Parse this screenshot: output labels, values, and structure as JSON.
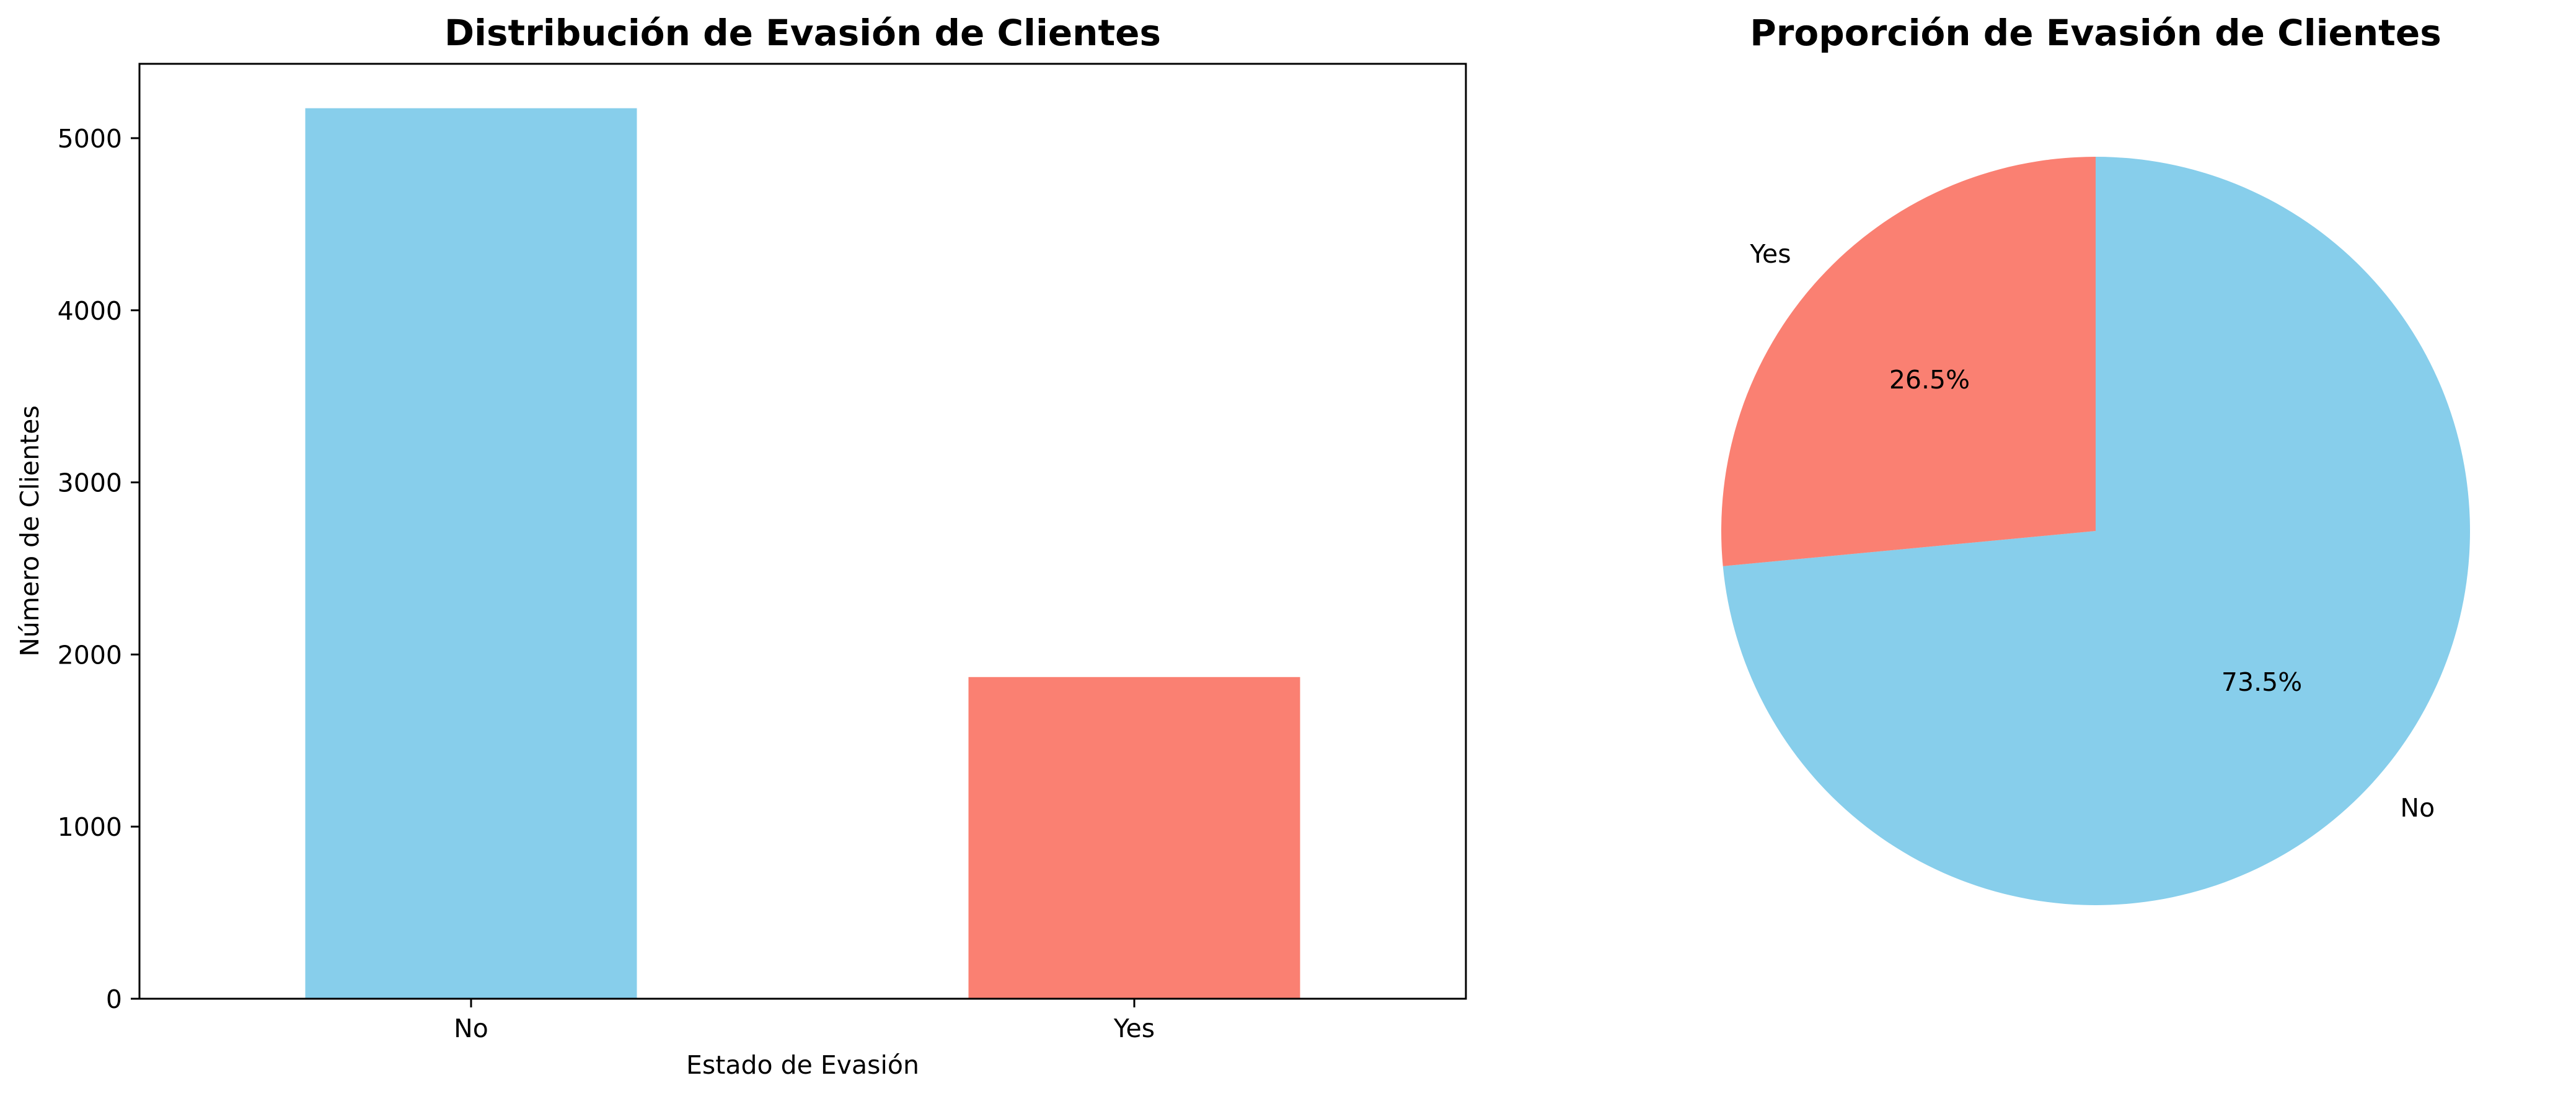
{
  "chart_data": [
    {
      "type": "bar",
      "title": "Distribución de Evasión de Clientes",
      "xlabel": "Estado de Evasión",
      "ylabel": "Número de Clientes",
      "categories": [
        "No",
        "Yes"
      ],
      "values": [
        5174,
        1869
      ],
      "colors": [
        "#87CEEB",
        "#FA8072"
      ],
      "ylim": [
        0,
        5432
      ],
      "yticks": [
        0,
        1000,
        2000,
        3000,
        4000,
        5000
      ],
      "grid": false
    },
    {
      "type": "pie",
      "title": "Proporción de Evasión de Clientes",
      "labels": [
        "No",
        "Yes"
      ],
      "values": [
        73.5,
        26.5
      ],
      "pct_labels": [
        "73.5%",
        "26.5%"
      ],
      "colors": [
        "#87CEEB",
        "#FA8072"
      ],
      "startangle": 90
    }
  ]
}
